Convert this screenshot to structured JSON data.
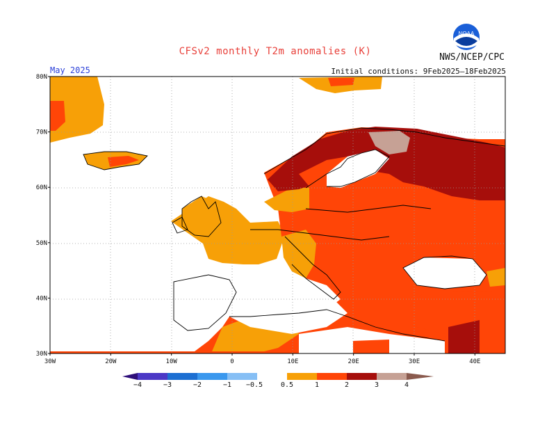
{
  "header": {
    "title": "CFSv2 monthly T2m anomalies (K)",
    "agency": "NWS/NCEP/CPC",
    "logo_text": "NOAA",
    "valid_month": "May 2025",
    "initial_conditions": "Initial conditions: 9Feb2025–18Feb2025"
  },
  "map": {
    "lon_range": [
      -30,
      45
    ],
    "lat_range": [
      30,
      80
    ],
    "lon_ticks": [
      "30W",
      "20W",
      "10W",
      "0",
      "10E",
      "20E",
      "30E",
      "40E"
    ],
    "lat_ticks": [
      "80N",
      "70N",
      "60N",
      "50N",
      "40N",
      "30N"
    ],
    "grid": true
  },
  "chart_data": {
    "type": "heatmap",
    "title": "CFSv2 monthly T2m anomalies (K)",
    "units": "K",
    "levels": [
      "-4",
      "-3",
      "-2",
      "-1",
      "-0.5",
      "0.5",
      "1",
      "2",
      "3",
      "4"
    ],
    "colors": {
      "lt_-4": "#2e0f7a",
      "-4_-3": "#4b38c6",
      "-3_-2": "#1c6fd2",
      "-2_-1": "#3a98ee",
      "-1_-0.5": "#86bff5",
      "-0.5_0.5": "#ffffff",
      "0.5_1": "#f7a007",
      "1_2": "#ff4507",
      "2_3": "#a60e0b",
      "3_4": "#c6a195",
      "gt_4": "#8a5a4e"
    }
  },
  "colorbar": {
    "labels": [
      "−4",
      "−3",
      "−2",
      "−1",
      "−0.5",
      "0.5",
      "1",
      "2",
      "3",
      "4"
    ]
  }
}
